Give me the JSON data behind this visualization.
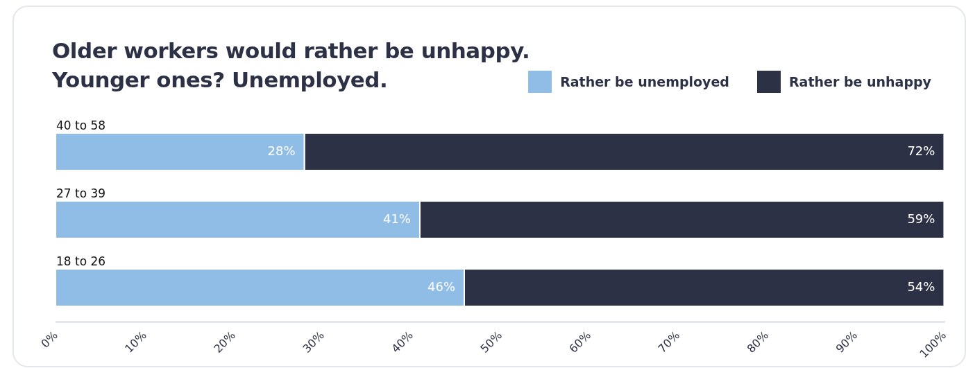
{
  "chart_data": {
    "type": "bar",
    "orientation": "horizontal",
    "stacked": true,
    "title": "Older workers would rather be unhappy.\nYounger ones? Unemployed.",
    "categories": [
      "40 to 58",
      "27 to 39",
      "18 to 26"
    ],
    "series": [
      {
        "name": "Rather be unemployed",
        "color": "#8fbde6",
        "values": [
          28,
          41,
          46
        ],
        "value_labels": [
          "28%",
          "41%",
          "46%"
        ]
      },
      {
        "name": "Rather be unhappy",
        "color": "#2d3145",
        "values": [
          72,
          59,
          54
        ],
        "value_labels": [
          "72%",
          "59%",
          "54%"
        ]
      }
    ],
    "xlim": [
      0,
      100
    ],
    "xticks": [
      {
        "value": 0,
        "label": "0%"
      },
      {
        "value": 10,
        "label": "10%"
      },
      {
        "value": 20,
        "label": "20%"
      },
      {
        "value": 30,
        "label": "30%"
      },
      {
        "value": 40,
        "label": "40%"
      },
      {
        "value": 50,
        "label": "50%"
      },
      {
        "value": 60,
        "label": "60%"
      },
      {
        "value": 70,
        "label": "70%"
      },
      {
        "value": 80,
        "label": "80%"
      },
      {
        "value": 90,
        "label": "90%"
      },
      {
        "value": 100,
        "label": "100%"
      }
    ],
    "legend": "top right",
    "grid": false
  }
}
